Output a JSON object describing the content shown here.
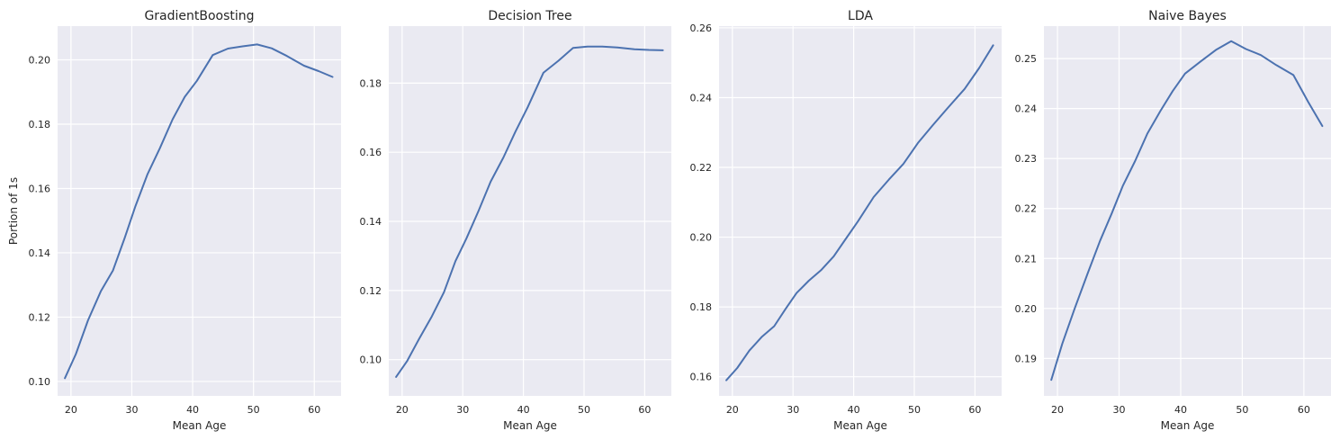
{
  "chart_data": [
    {
      "type": "line",
      "title": "GradientBoosting",
      "xlabel": "Mean Age",
      "ylabel": "Portion of 1s",
      "xlim": [
        17.8,
        64.4
      ],
      "ylim": [
        0.0955,
        0.2105
      ],
      "xticks": [
        20,
        30,
        40,
        50,
        60
      ],
      "yticks": [
        0.1,
        0.12,
        0.14,
        0.16,
        0.18,
        0.2
      ],
      "ytick_labels": [
        "0.10",
        "0.12",
        "0.14",
        "0.16",
        "0.18",
        "0.20"
      ],
      "grid": true,
      "x": [
        19.0,
        20.8,
        22.8,
        24.9,
        26.9,
        28.8,
        30.6,
        32.6,
        34.6,
        36.7,
        38.7,
        40.7,
        43.3,
        45.8,
        48.2,
        50.6,
        53.0,
        55.5,
        58.3,
        60.7,
        63.0
      ],
      "values": [
        0.101,
        0.1085,
        0.119,
        0.128,
        0.1345,
        0.1445,
        0.1545,
        0.1645,
        0.1725,
        0.1815,
        0.1885,
        0.1935,
        0.2015,
        0.2035,
        0.2042,
        0.2048,
        0.2036,
        0.2012,
        0.1982,
        0.1965,
        0.1947
      ]
    },
    {
      "type": "line",
      "title": "Decision Tree",
      "xlabel": "Mean Age",
      "ylabel": "",
      "xlim": [
        17.8,
        64.4
      ],
      "ylim": [
        0.0895,
        0.1965
      ],
      "xticks": [
        20,
        30,
        40,
        50,
        60
      ],
      "yticks": [
        0.1,
        0.12,
        0.14,
        0.16,
        0.18
      ],
      "ytick_labels": [
        "0.10",
        "0.12",
        "0.14",
        "0.16",
        "0.18"
      ],
      "grid": true,
      "x": [
        19.0,
        20.8,
        22.8,
        24.9,
        26.9,
        28.8,
        30.6,
        32.6,
        34.6,
        36.7,
        38.7,
        40.7,
        43.3,
        45.8,
        48.2,
        50.6,
        53.0,
        55.5,
        58.3,
        60.7,
        63.0
      ],
      "values": [
        0.095,
        0.0995,
        0.106,
        0.1125,
        0.1195,
        0.1285,
        0.135,
        0.143,
        0.1515,
        0.1585,
        0.166,
        0.173,
        0.183,
        0.1865,
        0.1902,
        0.1906,
        0.1906,
        0.1903,
        0.1898,
        0.1896,
        0.1895
      ]
    },
    {
      "type": "line",
      "title": "LDA",
      "xlabel": "Mean Age",
      "ylabel": "",
      "xlim": [
        17.8,
        64.4
      ],
      "ylim": [
        0.1545,
        0.2605
      ],
      "xticks": [
        20,
        30,
        40,
        50,
        60
      ],
      "yticks": [
        0.16,
        0.18,
        0.2,
        0.22,
        0.24,
        0.26
      ],
      "ytick_labels": [
        "0.16",
        "0.18",
        "0.20",
        "0.22",
        "0.24",
        "0.26"
      ],
      "grid": true,
      "x": [
        19.0,
        20.8,
        22.8,
        24.9,
        26.9,
        28.8,
        30.6,
        32.6,
        34.6,
        36.7,
        38.7,
        40.7,
        43.3,
        45.8,
        48.2,
        50.6,
        53.0,
        55.5,
        58.3,
        60.7,
        63.0
      ],
      "values": [
        0.159,
        0.1625,
        0.1675,
        0.1715,
        0.1745,
        0.1795,
        0.184,
        0.1875,
        0.1905,
        0.1945,
        0.1995,
        0.2045,
        0.2115,
        0.2165,
        0.221,
        0.227,
        0.232,
        0.237,
        0.2425,
        0.2485,
        0.255
      ]
    },
    {
      "type": "line",
      "title": "Naive Bayes",
      "xlabel": "Mean Age",
      "ylabel": "",
      "xlim": [
        17.8,
        64.4
      ],
      "ylim": [
        0.1825,
        0.2565
      ],
      "xticks": [
        20,
        30,
        40,
        50,
        60
      ],
      "yticks": [
        0.19,
        0.2,
        0.21,
        0.22,
        0.23,
        0.24,
        0.25
      ],
      "ytick_labels": [
        "0.19",
        "0.20",
        "0.21",
        "0.22",
        "0.23",
        "0.24",
        "0.25"
      ],
      "grid": true,
      "x": [
        19.0,
        20.8,
        22.8,
        24.9,
        26.9,
        28.8,
        30.6,
        32.6,
        34.6,
        36.7,
        38.7,
        40.7,
        43.3,
        45.8,
        48.2,
        50.6,
        53.0,
        55.5,
        58.3,
        60.7,
        63.0
      ],
      "values": [
        0.1857,
        0.193,
        0.2,
        0.207,
        0.2135,
        0.219,
        0.2245,
        0.2295,
        0.235,
        0.2395,
        0.2435,
        0.247,
        0.2495,
        0.2518,
        0.2535,
        0.2519,
        0.2507,
        0.2487,
        0.2467,
        0.2413,
        0.2365
      ]
    }
  ],
  "style": {
    "panel_bg": "#eaeaf2",
    "grid_color": "#ffffff",
    "line_color": "#4c72b0",
    "text_color": "#262626"
  }
}
